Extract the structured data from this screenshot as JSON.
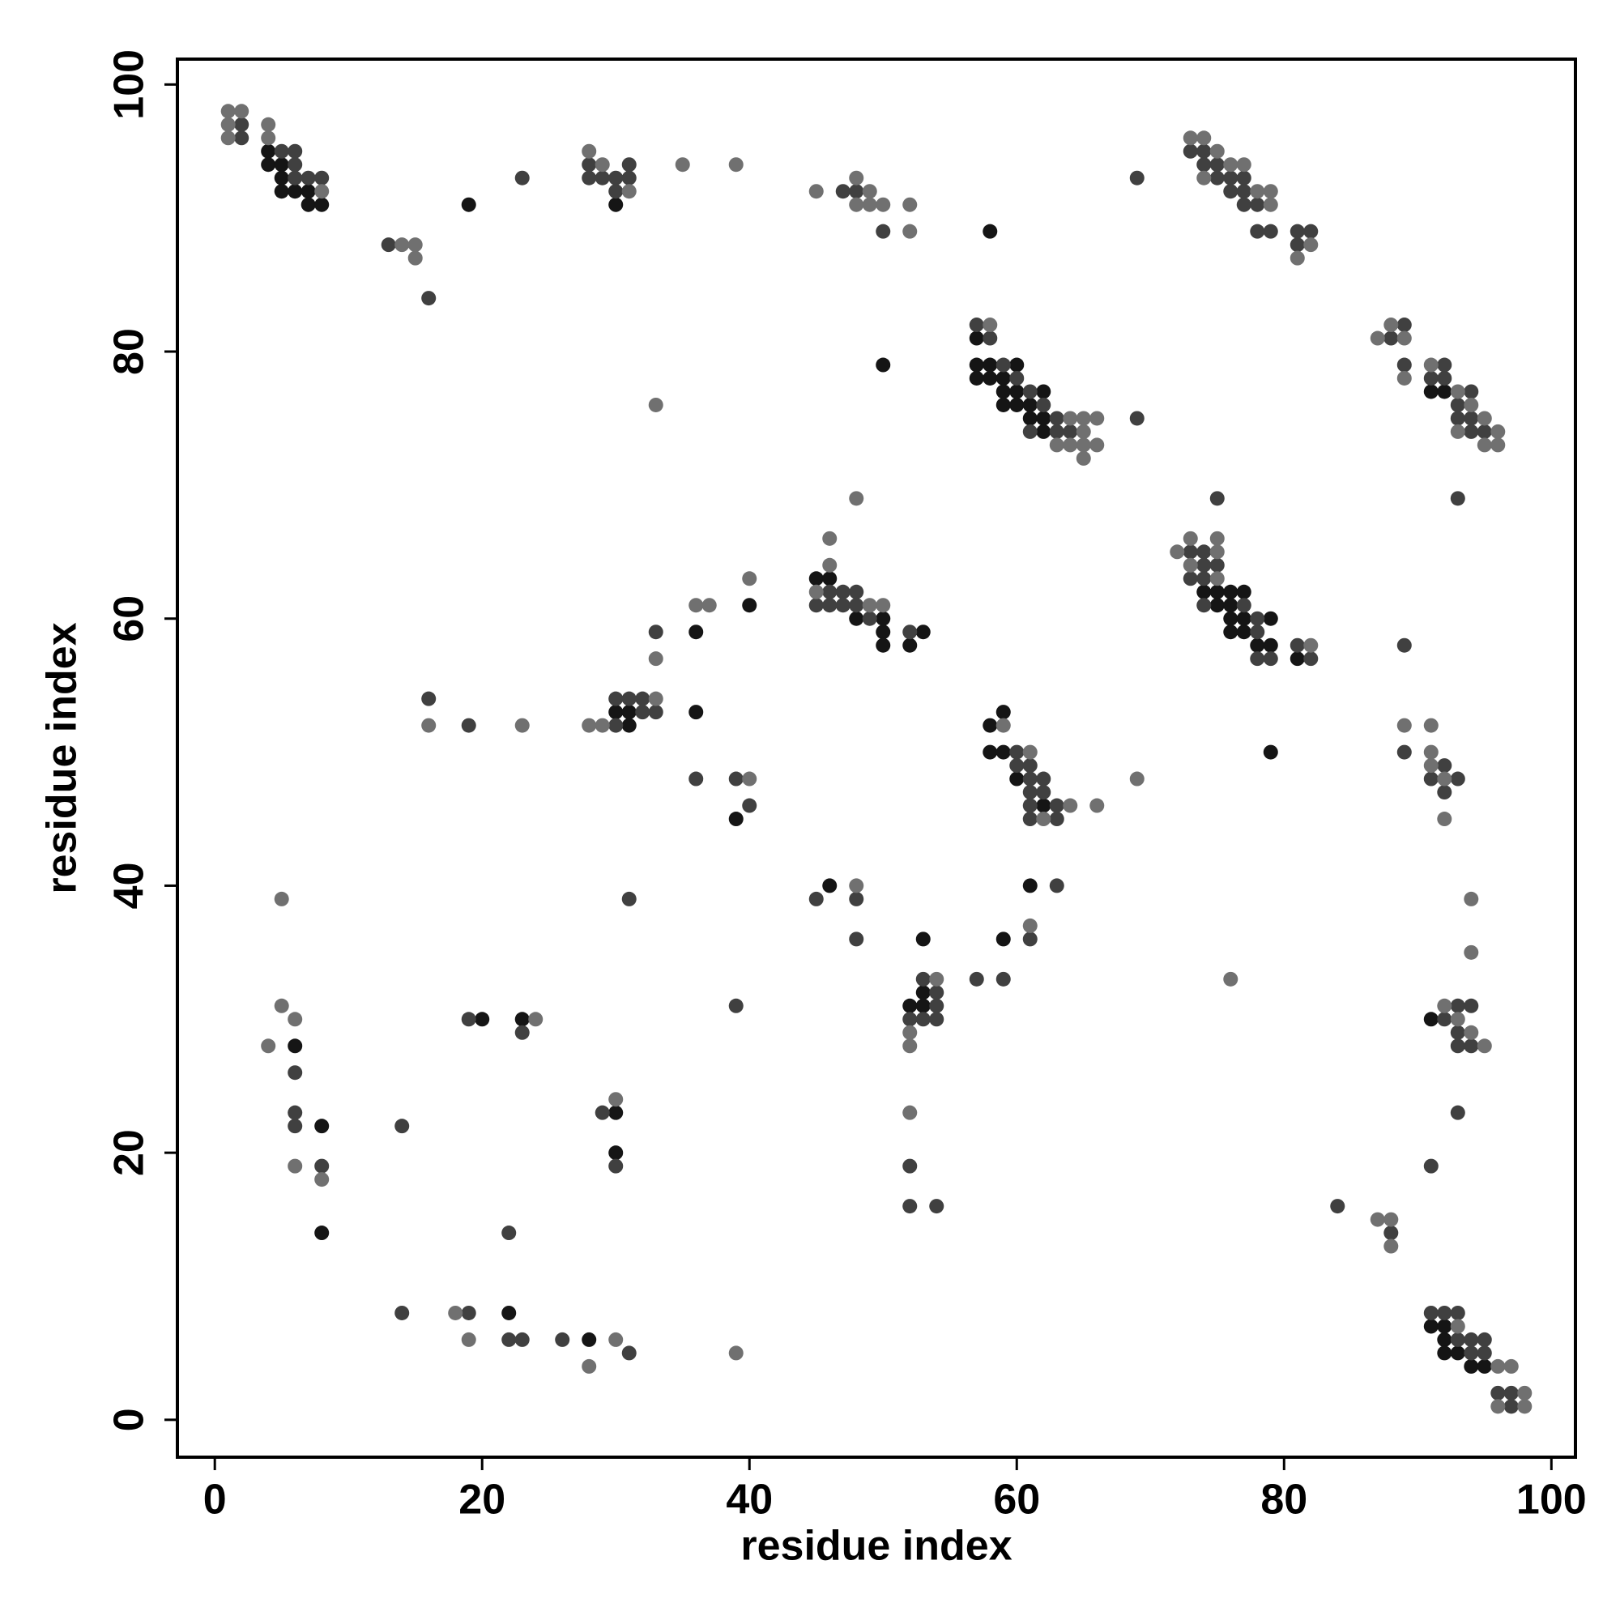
{
  "chart_data": {
    "type": "scatter",
    "x_label": "residue index",
    "y_label": "residue index",
    "xlim": [
      -2.8,
      101.8
    ],
    "ylim": [
      -2.8,
      101.9
    ],
    "xticks": [
      0,
      20,
      40,
      60,
      80,
      100
    ],
    "yticks": [
      0,
      20,
      40,
      60,
      80,
      100
    ],
    "grid": false,
    "series": [
      {
        "color": "#151515",
        "x": [
          4,
          4,
          5,
          5,
          5,
          6,
          7,
          7,
          8,
          19,
          30,
          58,
          50,
          57,
          57,
          58,
          60,
          57,
          58,
          59,
          59,
          60,
          62,
          59,
          60,
          61,
          61,
          62,
          62,
          91,
          92,
          45,
          46,
          48,
          50,
          50,
          53,
          50,
          52,
          40,
          36,
          74,
          75,
          76,
          77,
          75,
          76,
          76,
          77,
          79,
          76,
          77,
          78,
          79,
          81,
          30,
          31,
          31,
          36,
          39,
          58,
          59,
          58,
          59,
          60,
          62,
          79,
          46,
          61,
          59,
          53,
          52,
          53,
          53,
          91,
          6,
          8,
          8,
          20,
          23,
          30,
          30,
          22,
          28,
          91,
          92,
          92,
          92,
          93,
          94,
          95
        ],
        "y": [
          95,
          94,
          94,
          93,
          92,
          92,
          92,
          91,
          91,
          91,
          91,
          89,
          79,
          81,
          79,
          79,
          79,
          78,
          78,
          78,
          77,
          77,
          77,
          76,
          76,
          76,
          75,
          75,
          74,
          77,
          77,
          63,
          63,
          60,
          60,
          59,
          59,
          58,
          58,
          61,
          59,
          62,
          62,
          62,
          62,
          61,
          61,
          60,
          60,
          60,
          59,
          59,
          58,
          58,
          57,
          53,
          53,
          52,
          53,
          45,
          52,
          53,
          50,
          50,
          48,
          46,
          50,
          40,
          40,
          36,
          36,
          31,
          31,
          32,
          30,
          28,
          22,
          14,
          30,
          30,
          23,
          20,
          8,
          6,
          7,
          7,
          6,
          5,
          5,
          4,
          4
        ]
      },
      {
        "color": "#404040",
        "x": [
          2,
          2,
          5,
          6,
          6,
          6,
          7,
          8,
          23,
          13,
          16,
          28,
          30,
          31,
          28,
          29,
          31,
          30,
          47,
          48,
          50,
          69,
          73,
          74,
          74,
          75,
          75,
          76,
          77,
          76,
          77,
          77,
          78,
          78,
          79,
          81,
          82,
          81,
          57,
          58,
          59,
          60,
          61,
          62,
          63,
          61,
          63,
          64,
          69,
          89,
          88,
          89,
          92,
          91,
          92,
          93,
          94,
          93,
          94,
          94,
          95,
          75,
          93,
          46,
          47,
          48,
          45,
          46,
          47,
          48,
          49,
          52,
          33,
          73,
          74,
          74,
          75,
          73,
          74,
          74,
          77,
          78,
          78,
          81,
          78,
          79,
          82,
          89,
          16,
          19,
          30,
          31,
          32,
          32,
          33,
          30,
          36,
          39,
          40,
          60,
          60,
          61,
          61,
          62,
          61,
          62,
          61,
          63,
          61,
          63,
          89,
          92,
          91,
          93,
          92,
          31,
          45,
          48,
          48,
          63,
          61,
          57,
          59,
          54,
          53,
          54,
          52,
          53,
          54,
          93,
          94,
          92,
          93,
          93,
          94,
          6,
          6,
          6,
          8,
          19,
          23,
          14,
          29,
          30,
          39,
          52,
          52,
          54,
          93,
          91,
          22,
          84,
          88,
          14,
          19,
          22,
          23,
          26,
          31,
          91,
          92,
          93,
          93,
          94,
          95,
          94,
          95,
          96,
          97,
          97
        ],
        "y": [
          97,
          96,
          95,
          95,
          94,
          93,
          93,
          93,
          93,
          88,
          84,
          94,
          93,
          94,
          93,
          93,
          93,
          92,
          92,
          92,
          89,
          93,
          95,
          95,
          94,
          94,
          93,
          93,
          93,
          92,
          92,
          91,
          91,
          89,
          89,
          89,
          89,
          88,
          82,
          81,
          79,
          78,
          77,
          76,
          75,
          74,
          74,
          74,
          75,
          82,
          81,
          79,
          79,
          78,
          78,
          76,
          77,
          75,
          75,
          74,
          74,
          69,
          69,
          62,
          62,
          62,
          61,
          61,
          61,
          61,
          60,
          59,
          59,
          65,
          65,
          64,
          64,
          63,
          63,
          61,
          61,
          60,
          59,
          58,
          57,
          57,
          57,
          58,
          54,
          52,
          54,
          54,
          54,
          53,
          53,
          52,
          48,
          48,
          46,
          50,
          49,
          49,
          48,
          48,
          47,
          47,
          46,
          46,
          45,
          45,
          50,
          49,
          48,
          48,
          47,
          39,
          39,
          39,
          36,
          40,
          36,
          33,
          33,
          31,
          33,
          32,
          30,
          30,
          30,
          31,
          31,
          30,
          29,
          28,
          28,
          26,
          23,
          22,
          19,
          30,
          29,
          22,
          23,
          19,
          31,
          19,
          16,
          16,
          23,
          19,
          14,
          16,
          14,
          8,
          8,
          6,
          6,
          6,
          5,
          8,
          8,
          8,
          6,
          6,
          6,
          5,
          5,
          2,
          2,
          1
        ]
      },
      {
        "color": "#707070",
        "x": [
          1,
          2,
          1,
          1,
          4,
          4,
          8,
          14,
          15,
          15,
          28,
          29,
          31,
          35,
          39,
          45,
          48,
          49,
          48,
          49,
          50,
          52,
          52,
          73,
          74,
          75,
          76,
          74,
          77,
          78,
          79,
          79,
          82,
          81,
          33,
          58,
          64,
          65,
          66,
          65,
          63,
          64,
          65,
          66,
          65,
          87,
          88,
          89,
          89,
          91,
          93,
          94,
          95,
          93,
          96,
          95,
          96,
          48,
          46,
          46,
          45,
          49,
          50,
          40,
          36,
          37,
          33,
          72,
          73,
          75,
          75,
          73,
          75,
          82,
          16,
          23,
          28,
          29,
          33,
          40,
          59,
          61,
          64,
          62,
          66,
          69,
          89,
          91,
          91,
          91,
          92,
          92,
          5,
          48,
          61,
          54,
          52,
          52,
          94,
          94,
          76,
          92,
          93,
          94,
          95,
          5,
          6,
          4,
          6,
          8,
          24,
          30,
          52,
          87,
          88,
          88,
          18,
          19,
          30,
          28,
          39,
          93,
          96,
          97,
          98,
          96,
          98
        ],
        "y": [
          98,
          98,
          97,
          96,
          97,
          96,
          92,
          88,
          88,
          87,
          95,
          94,
          92,
          94,
          94,
          92,
          93,
          92,
          91,
          91,
          91,
          91,
          89,
          96,
          96,
          95,
          94,
          93,
          94,
          92,
          92,
          91,
          88,
          87,
          76,
          82,
          75,
          75,
          75,
          74,
          73,
          73,
          73,
          73,
          72,
          81,
          82,
          81,
          78,
          79,
          77,
          76,
          75,
          74,
          74,
          73,
          73,
          69,
          66,
          64,
          62,
          61,
          61,
          63,
          61,
          61,
          57,
          65,
          66,
          66,
          65,
          64,
          63,
          58,
          52,
          52,
          52,
          52,
          54,
          48,
          52,
          50,
          46,
          45,
          46,
          48,
          52,
          52,
          50,
          49,
          48,
          45,
          39,
          40,
          37,
          33,
          29,
          28,
          39,
          35,
          33,
          31,
          30,
          29,
          28,
          31,
          30,
          28,
          19,
          18,
          30,
          24,
          23,
          15,
          15,
          13,
          8,
          6,
          6,
          4,
          5,
          7,
          4,
          4,
          2,
          1,
          1
        ]
      }
    ]
  }
}
